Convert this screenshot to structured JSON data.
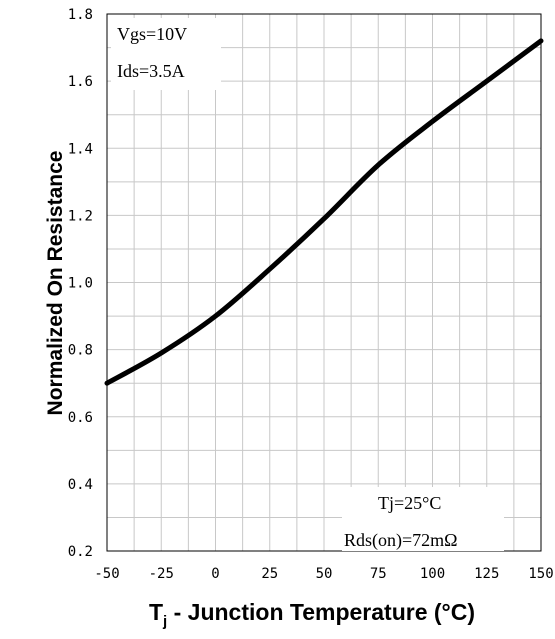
{
  "chart_data": {
    "type": "line",
    "title": "",
    "xlabel": {
      "main": "T",
      "sub": "j",
      "rest": " - Junction Temperature (°C)"
    },
    "ylabel": "Normalized On Resistance",
    "xlim": [
      -50,
      150
    ],
    "ylim": [
      0.2,
      1.8
    ],
    "x_ticks": [
      "-50",
      "-25",
      "0",
      "25",
      "50",
      "75",
      "100",
      "125",
      "150"
    ],
    "y_ticks": [
      "0.2",
      "0.4",
      "0.6",
      "0.8",
      "1.0",
      "1.2",
      "1.4",
      "1.6",
      "1.8"
    ],
    "grid": true,
    "annotations": {
      "top_left": [
        "Vgs=10V",
        "Ids=3.5A"
      ],
      "bottom_right": [
        "Tj=25°C",
        "Rds(on)=72mΩ"
      ]
    },
    "series": [
      {
        "x": [
          -50,
          -25,
          0,
          25,
          50,
          75,
          100,
          125,
          150
        ],
        "y": [
          0.7,
          0.79,
          0.9,
          1.04,
          1.19,
          1.35,
          1.48,
          1.6,
          1.72
        ]
      }
    ],
    "line_color": "#000000",
    "grid_color": "#c8c8c8"
  }
}
